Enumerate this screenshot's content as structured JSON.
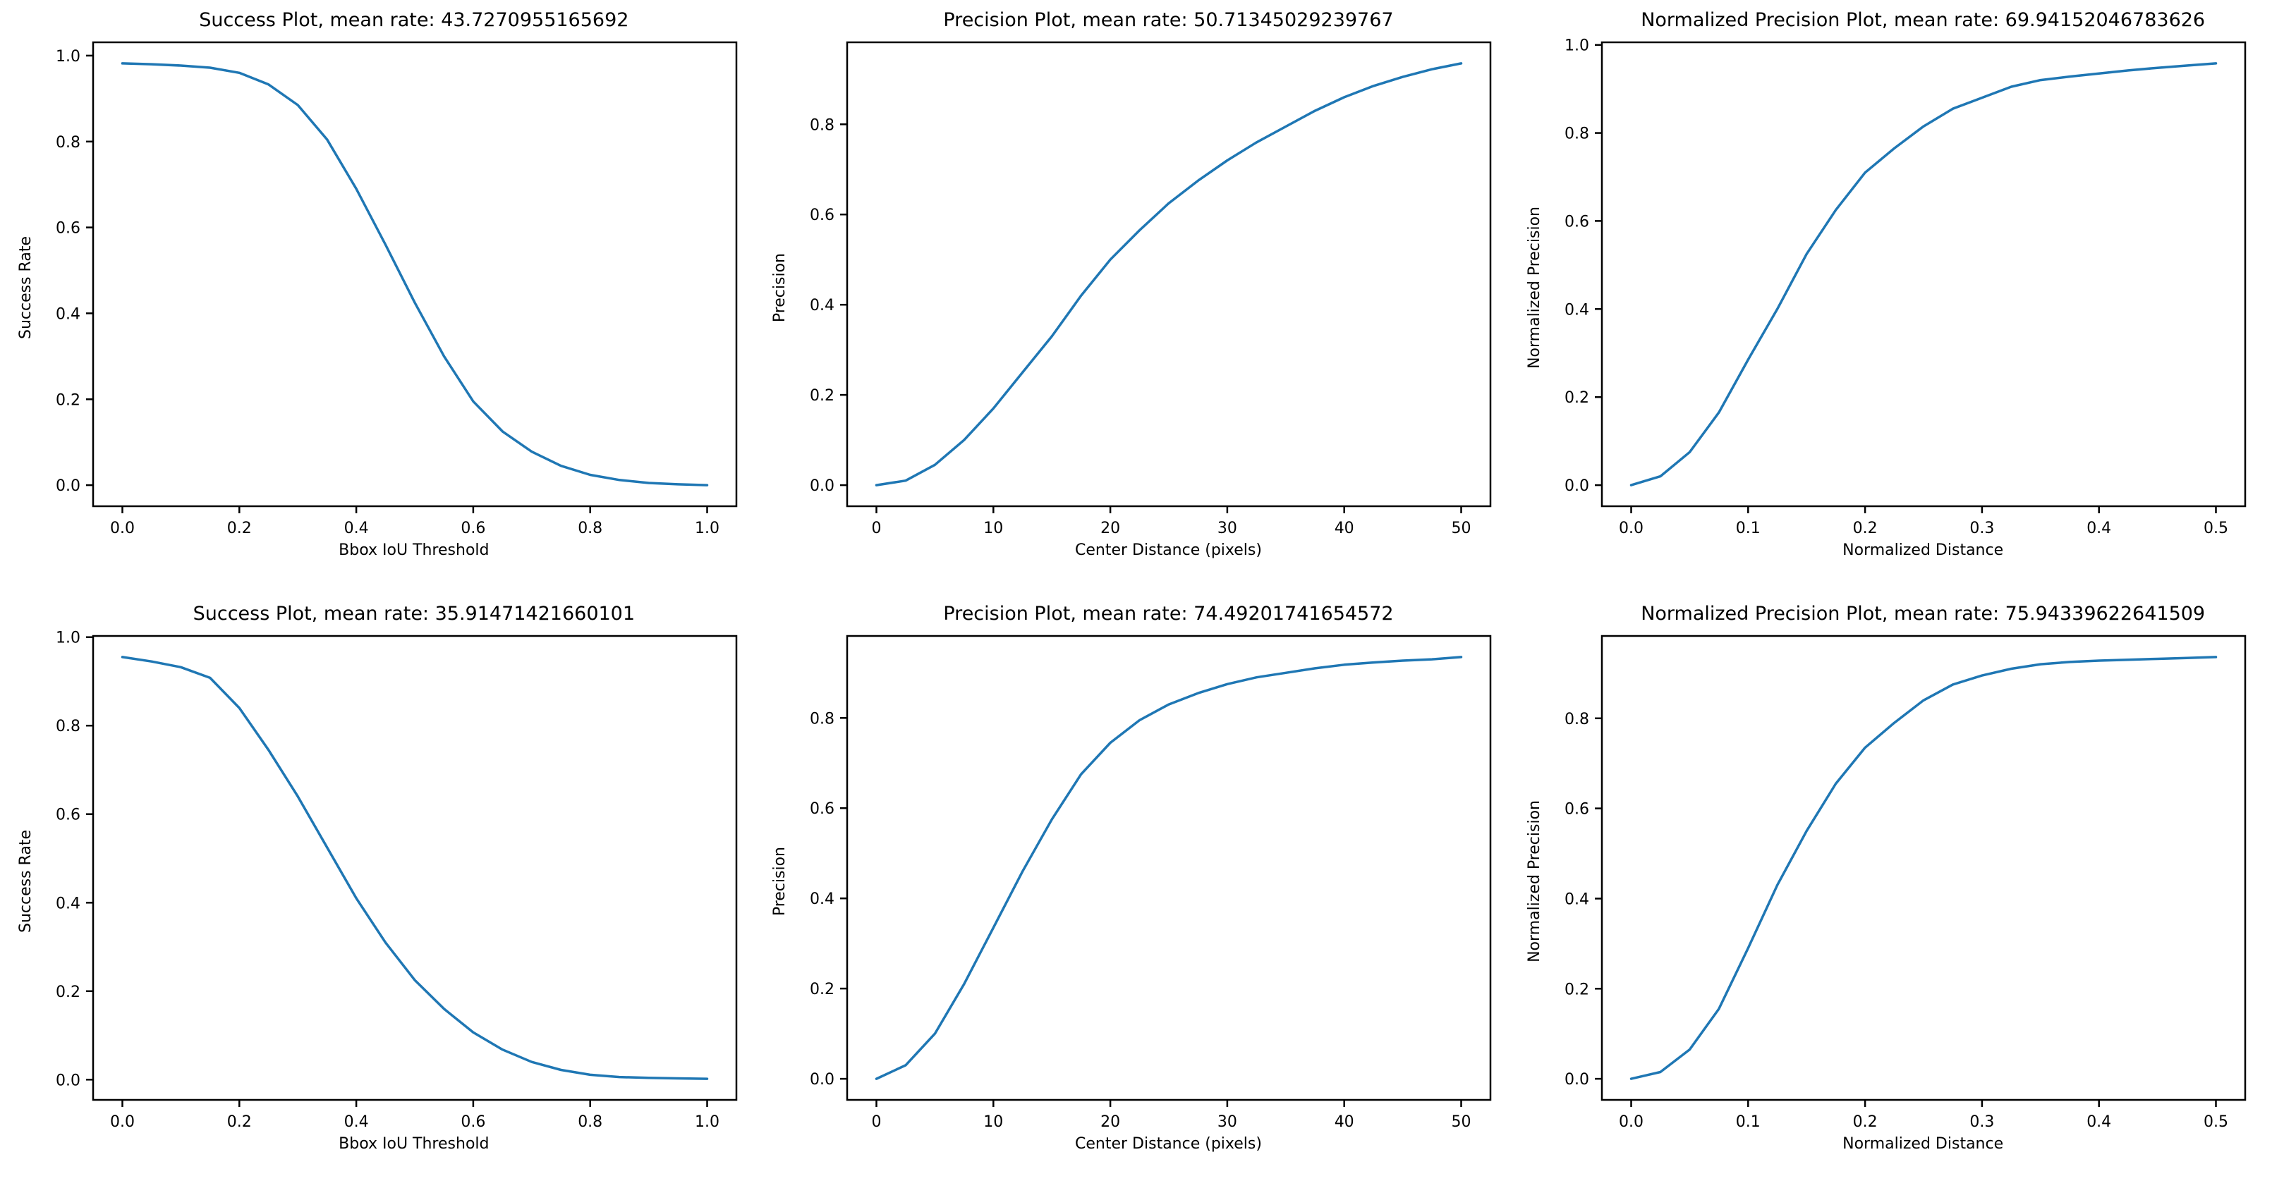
{
  "colors": {
    "line": "#1f77b4",
    "spine": "#000000",
    "background": "#ffffff"
  },
  "chart_data": [
    {
      "type": "line",
      "title": "Success Plot, mean rate: 43.7270955165692",
      "xlabel": "Bbox IoU Threshold",
      "ylabel": "Success Rate",
      "legend": "none",
      "grid": false,
      "line_color": "#1f77b4",
      "x": [
        0,
        0.05,
        0.1,
        0.15,
        0.2,
        0.25,
        0.3,
        0.35,
        0.4,
        0.45,
        0.5,
        0.55,
        0.6,
        0.65,
        0.7,
        0.75,
        0.8,
        0.85,
        0.9,
        0.95,
        1.0
      ],
      "y": [
        0.982,
        0.98,
        0.977,
        0.972,
        0.96,
        0.933,
        0.885,
        0.805,
        0.69,
        0.56,
        0.425,
        0.3,
        0.195,
        0.125,
        0.078,
        0.045,
        0.024,
        0.012,
        0.005,
        0.002,
        0.0
      ],
      "xtick_values": [
        0.0,
        0.2,
        0.4,
        0.6,
        0.8,
        1.0
      ],
      "xtick_labels": [
        "0.0",
        "0.2",
        "0.4",
        "0.6",
        "0.8",
        "1.0"
      ],
      "ytick_values": [
        0.0,
        0.2,
        0.4,
        0.6,
        0.8,
        1.0
      ],
      "ytick_labels": [
        "0.0",
        "0.2",
        "0.4",
        "0.6",
        "0.8",
        "1.0"
      ]
    },
    {
      "type": "line",
      "title": "Precision Plot, mean rate: 50.71345029239767",
      "xlabel": "Center Distance (pixels)",
      "ylabel": "Precision",
      "legend": "none",
      "grid": false,
      "line_color": "#1f77b4",
      "x": [
        0,
        2.5,
        5,
        7.5,
        10,
        12.5,
        15,
        17.5,
        20,
        22.5,
        25,
        27.5,
        30,
        32.5,
        35,
        37.5,
        40,
        42.5,
        45,
        47.5,
        50
      ],
      "y": [
        0.0,
        0.01,
        0.045,
        0.1,
        0.17,
        0.25,
        0.33,
        0.42,
        0.5,
        0.565,
        0.625,
        0.675,
        0.72,
        0.76,
        0.795,
        0.83,
        0.86,
        0.885,
        0.905,
        0.922,
        0.935
      ],
      "xtick_values": [
        0,
        10,
        20,
        30,
        40,
        50
      ],
      "xtick_labels": [
        "0",
        "10",
        "20",
        "30",
        "40",
        "50"
      ],
      "ytick_values": [
        0.0,
        0.2,
        0.4,
        0.6,
        0.8
      ],
      "ytick_labels": [
        "0.0",
        "0.2",
        "0.4",
        "0.6",
        "0.8"
      ]
    },
    {
      "type": "line",
      "title": "Normalized Precision Plot, mean rate: 69.94152046783626",
      "xlabel": "Normalized Distance",
      "ylabel": "Normalized Precision",
      "legend": "none",
      "grid": false,
      "line_color": "#1f77b4",
      "x": [
        0,
        0.025,
        0.05,
        0.075,
        0.1,
        0.125,
        0.15,
        0.175,
        0.2,
        0.225,
        0.25,
        0.275,
        0.3,
        0.325,
        0.35,
        0.375,
        0.4,
        0.425,
        0.45,
        0.475,
        0.5
      ],
      "y": [
        0.0,
        0.02,
        0.075,
        0.165,
        0.285,
        0.4,
        0.525,
        0.625,
        0.71,
        0.765,
        0.815,
        0.855,
        0.88,
        0.905,
        0.92,
        0.928,
        0.935,
        0.942,
        0.948,
        0.953,
        0.958
      ],
      "xtick_values": [
        0.0,
        0.1,
        0.2,
        0.3,
        0.4,
        0.5
      ],
      "xtick_labels": [
        "0.0",
        "0.1",
        "0.2",
        "0.3",
        "0.4",
        "0.5"
      ],
      "ytick_values": [
        0.0,
        0.2,
        0.4,
        0.6,
        0.8,
        1.0
      ],
      "ytick_labels": [
        "0.0",
        "0.2",
        "0.4",
        "0.6",
        "0.8",
        "1.0"
      ]
    },
    {
      "type": "line",
      "title": "Success Plot, mean rate: 35.91471421660101",
      "xlabel": "Bbox IoU Threshold",
      "ylabel": "Success Rate",
      "legend": "none",
      "grid": false,
      "line_color": "#1f77b4",
      "x": [
        0,
        0.05,
        0.1,
        0.15,
        0.2,
        0.25,
        0.3,
        0.35,
        0.4,
        0.45,
        0.5,
        0.55,
        0.6,
        0.65,
        0.7,
        0.75,
        0.8,
        0.85,
        0.9,
        0.95,
        1.0
      ],
      "y": [
        0.955,
        0.945,
        0.932,
        0.908,
        0.84,
        0.745,
        0.64,
        0.525,
        0.41,
        0.31,
        0.225,
        0.16,
        0.107,
        0.068,
        0.04,
        0.022,
        0.011,
        0.006,
        0.004,
        0.003,
        0.002
      ],
      "xtick_values": [
        0.0,
        0.2,
        0.4,
        0.6,
        0.8,
        1.0
      ],
      "xtick_labels": [
        "0.0",
        "0.2",
        "0.4",
        "0.6",
        "0.8",
        "1.0"
      ],
      "ytick_values": [
        0.0,
        0.2,
        0.4,
        0.6,
        0.8,
        1.0
      ],
      "ytick_labels": [
        "0.0",
        "0.2",
        "0.4",
        "0.6",
        "0.8",
        "1.0"
      ]
    },
    {
      "type": "line",
      "title": "Precision Plot, mean rate: 74.49201741654572",
      "xlabel": "Center Distance (pixels)",
      "ylabel": "Precision",
      "legend": "none",
      "grid": false,
      "line_color": "#1f77b4",
      "x": [
        0,
        2.5,
        5,
        7.5,
        10,
        12.5,
        15,
        17.5,
        20,
        22.5,
        25,
        27.5,
        30,
        32.5,
        35,
        37.5,
        40,
        42.5,
        45,
        47.5,
        50
      ],
      "y": [
        0.0,
        0.03,
        0.1,
        0.21,
        0.335,
        0.46,
        0.575,
        0.675,
        0.745,
        0.795,
        0.83,
        0.855,
        0.875,
        0.89,
        0.9,
        0.91,
        0.918,
        0.923,
        0.927,
        0.93,
        0.935
      ],
      "xtick_values": [
        0,
        10,
        20,
        30,
        40,
        50
      ],
      "xtick_labels": [
        "0",
        "10",
        "20",
        "30",
        "40",
        "50"
      ],
      "ytick_values": [
        0.0,
        0.2,
        0.4,
        0.6,
        0.8
      ],
      "ytick_labels": [
        "0.0",
        "0.2",
        "0.4",
        "0.6",
        "0.8"
      ]
    },
    {
      "type": "line",
      "title": "Normalized Precision Plot, mean rate: 75.94339622641509",
      "xlabel": "Normalized Distance",
      "ylabel": "Normalized Precision",
      "legend": "none",
      "grid": false,
      "line_color": "#1f77b4",
      "x": [
        0,
        0.025,
        0.05,
        0.075,
        0.1,
        0.125,
        0.15,
        0.175,
        0.2,
        0.225,
        0.25,
        0.275,
        0.3,
        0.325,
        0.35,
        0.375,
        0.4,
        0.425,
        0.45,
        0.475,
        0.5
      ],
      "y": [
        0.0,
        0.015,
        0.065,
        0.155,
        0.29,
        0.43,
        0.55,
        0.655,
        0.735,
        0.79,
        0.84,
        0.875,
        0.895,
        0.91,
        0.92,
        0.925,
        0.928,
        0.93,
        0.932,
        0.934,
        0.936
      ],
      "xtick_values": [
        0.0,
        0.1,
        0.2,
        0.3,
        0.4,
        0.5
      ],
      "xtick_labels": [
        "0.0",
        "0.1",
        "0.2",
        "0.3",
        "0.4",
        "0.5"
      ],
      "ytick_values": [
        0.0,
        0.2,
        0.4,
        0.6,
        0.8
      ],
      "ytick_labels": [
        "0.0",
        "0.2",
        "0.4",
        "0.6",
        "0.8"
      ]
    }
  ]
}
